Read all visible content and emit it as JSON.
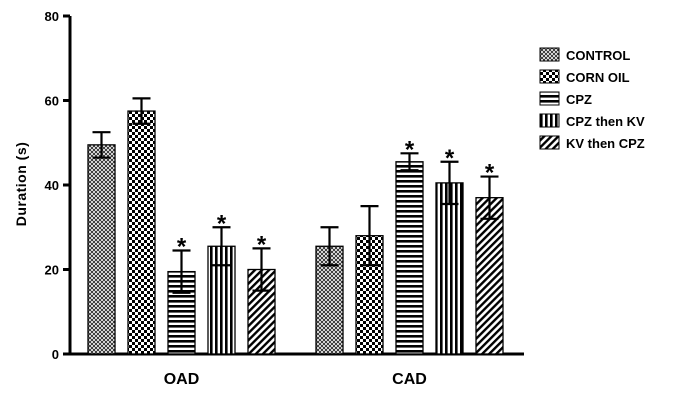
{
  "chart_data": {
    "type": "bar",
    "title": "",
    "xlabel": "",
    "ylabel": "Duration (s)",
    "ylim": [
      0,
      80
    ],
    "yticks": [
      "0",
      "20",
      "40",
      "60",
      "80"
    ],
    "categories": [
      "OAD",
      "CAD"
    ],
    "legend_position": "right",
    "grid": false,
    "significance_marker": "*",
    "series": [
      {
        "name": "CONTROL",
        "pattern": "crosshatch-fine",
        "values": [
          49.5,
          25.5
        ],
        "errors": [
          3.0,
          4.5
        ],
        "significant": [
          false,
          false
        ]
      },
      {
        "name": "CORN OIL",
        "pattern": "checker",
        "values": [
          57.5,
          28.0
        ],
        "errors": [
          3.0,
          7.0
        ],
        "significant": [
          false,
          false
        ]
      },
      {
        "name": "CPZ",
        "pattern": "horizontal",
        "values": [
          19.5,
          45.5
        ],
        "errors": [
          5.0,
          2.0
        ],
        "significant": [
          true,
          true
        ]
      },
      {
        "name": "CPZ then KV",
        "pattern": "vertical",
        "values": [
          25.5,
          40.5
        ],
        "errors": [
          4.5,
          5.0
        ],
        "significant": [
          true,
          true
        ]
      },
      {
        "name": "KV then CPZ",
        "pattern": "diagonal",
        "values": [
          20.0,
          37.0
        ],
        "errors": [
          5.0,
          5.0
        ],
        "significant": [
          true,
          true
        ]
      }
    ]
  }
}
